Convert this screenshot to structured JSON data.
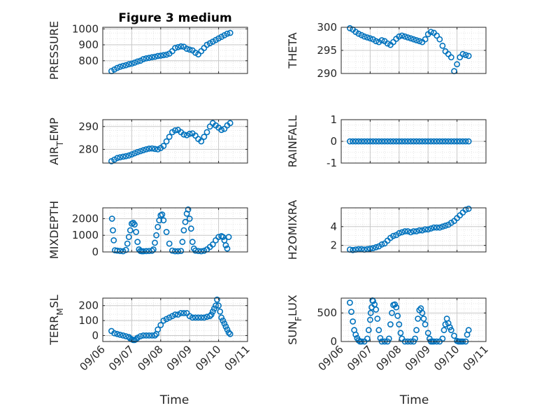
{
  "colors": {
    "marker": "#0072BD",
    "axis": "#262626",
    "grid": "#c8c8c8",
    "minor_grid": "#e6e6e6"
  },
  "chart_data": [
    {
      "id": "pressure",
      "type": "scatter",
      "title": "Figure 3 medium",
      "ylabel": "PRESSURE",
      "xlim": [
        6,
        11
      ],
      "ylim": [
        720,
        1010
      ],
      "yticks": [
        800,
        900,
        1000
      ],
      "ytick_labels": [
        "800",
        "900",
        "1000"
      ],
      "grid": true,
      "legend": "none",
      "x": [
        6.3,
        6.4,
        6.5,
        6.6,
        6.7,
        6.8,
        6.9,
        7.0,
        7.1,
        7.2,
        7.3,
        7.4,
        7.5,
        7.6,
        7.7,
        7.8,
        7.9,
        8.0,
        8.1,
        8.2,
        8.3,
        8.4,
        8.5,
        8.6,
        8.7,
        8.8,
        8.9,
        9.0,
        9.1,
        9.2,
        9.3,
        9.4,
        9.5,
        9.6,
        9.7,
        9.8,
        9.9,
        10.0,
        10.1,
        10.2,
        10.3,
        10.4
      ],
      "y": [
        735,
        745,
        755,
        762,
        768,
        772,
        778,
        782,
        788,
        795,
        800,
        810,
        815,
        818,
        822,
        825,
        830,
        832,
        835,
        838,
        845,
        860,
        880,
        885,
        890,
        888,
        875,
        870,
        865,
        850,
        840,
        860,
        880,
        900,
        910,
        920,
        930,
        940,
        950,
        960,
        970,
        975
      ]
    },
    {
      "id": "theta",
      "type": "scatter",
      "title": "",
      "ylabel": "THETA",
      "xlim": [
        6,
        11
      ],
      "ylim": [
        290,
        300
      ],
      "yticks": [
        290,
        295,
        300
      ],
      "ytick_labels": [
        "290",
        "295",
        "300"
      ],
      "grid": true,
      "legend": "none",
      "x": [
        6.3,
        6.4,
        6.5,
        6.6,
        6.7,
        6.8,
        6.9,
        7.0,
        7.1,
        7.2,
        7.3,
        7.4,
        7.5,
        7.6,
        7.7,
        7.8,
        7.9,
        8.0,
        8.1,
        8.2,
        8.3,
        8.4,
        8.5,
        8.6,
        8.7,
        8.8,
        8.9,
        9.0,
        9.1,
        9.2,
        9.3,
        9.4,
        9.5,
        9.6,
        9.7,
        9.8,
        9.9,
        10.0,
        10.1,
        10.2,
        10.3,
        10.4
      ],
      "y": [
        299.8,
        299.5,
        299.0,
        298.6,
        298.3,
        298.0,
        297.8,
        297.6,
        297.4,
        297.0,
        296.8,
        297.2,
        297.0,
        296.5,
        296.2,
        296.8,
        297.5,
        298.0,
        298.2,
        298.0,
        297.8,
        297.6,
        297.4,
        297.2,
        297.0,
        296.8,
        297.4,
        298.5,
        299.0,
        298.8,
        298.2,
        297.4,
        296.0,
        294.8,
        294.2,
        293.5,
        290.5,
        292.0,
        293.5,
        294.2,
        294.0,
        293.8
      ]
    },
    {
      "id": "air_temp",
      "type": "scatter",
      "title": "",
      "ylabel": "AIR_TEMP",
      "xlim": [
        6,
        11
      ],
      "ylim": [
        274,
        293
      ],
      "yticks": [
        280,
        290
      ],
      "ytick_labels": [
        "280",
        "290"
      ],
      "grid": true,
      "legend": "none",
      "x": [
        6.3,
        6.4,
        6.5,
        6.6,
        6.7,
        6.8,
        6.9,
        7.0,
        7.1,
        7.2,
        7.3,
        7.4,
        7.5,
        7.6,
        7.7,
        7.8,
        7.9,
        8.0,
        8.1,
        8.2,
        8.3,
        8.4,
        8.5,
        8.6,
        8.7,
        8.8,
        8.9,
        9.0,
        9.1,
        9.2,
        9.3,
        9.4,
        9.5,
        9.6,
        9.7,
        9.8,
        9.9,
        10.0,
        10.1,
        10.2,
        10.3,
        10.4
      ],
      "y": [
        274.8,
        275.5,
        276.2,
        276.5,
        276.8,
        277.0,
        277.3,
        277.8,
        278.3,
        278.8,
        279.2,
        279.6,
        280.0,
        280.3,
        280.4,
        280.2,
        280.0,
        280.6,
        281.5,
        283.5,
        285.5,
        287.5,
        288.3,
        288.5,
        287.5,
        286.5,
        286.2,
        286.8,
        287.0,
        286.0,
        284.5,
        283.5,
        285.5,
        287.5,
        290.0,
        291.5,
        290.5,
        289.5,
        288.5,
        289.0,
        290.5,
        291.5
      ]
    },
    {
      "id": "rainfall",
      "type": "scatter",
      "title": "",
      "ylabel": "RAINFALL",
      "xlim": [
        6,
        11
      ],
      "ylim": [
        -1,
        1
      ],
      "yticks": [
        -1,
        0,
        1
      ],
      "ytick_labels": [
        "-1",
        "0",
        "1"
      ],
      "grid": true,
      "legend": "none",
      "x": [
        6.3,
        6.4,
        6.5,
        6.6,
        6.7,
        6.8,
        6.9,
        7.0,
        7.1,
        7.2,
        7.3,
        7.4,
        7.5,
        7.6,
        7.7,
        7.8,
        7.9,
        8.0,
        8.1,
        8.2,
        8.3,
        8.4,
        8.5,
        8.6,
        8.7,
        8.8,
        8.9,
        9.0,
        9.1,
        9.2,
        9.3,
        9.4,
        9.5,
        9.6,
        9.7,
        9.8,
        9.9,
        10.0,
        10.1,
        10.2,
        10.3,
        10.4
      ],
      "y": [
        0,
        0,
        0,
        0,
        0,
        0,
        0,
        0,
        0,
        0,
        0,
        0,
        0,
        0,
        0,
        0,
        0,
        0,
        0,
        0,
        0,
        0,
        0,
        0,
        0,
        0,
        0,
        0,
        0,
        0,
        0,
        0,
        0,
        0,
        0,
        0,
        0,
        0,
        0,
        0,
        0,
        0
      ]
    },
    {
      "id": "mixdepth",
      "type": "scatter",
      "title": "",
      "ylabel": "MIXDEPTH",
      "xlim": [
        6,
        11
      ],
      "ylim": [
        0,
        2650
      ],
      "yticks": [
        0,
        1000,
        2000
      ],
      "ytick_labels": [
        "0",
        "1000",
        "2000"
      ],
      "grid": true,
      "legend": "none",
      "x": [
        6.32,
        6.35,
        6.38,
        6.42,
        6.5,
        6.6,
        6.7,
        6.8,
        6.85,
        6.9,
        6.95,
        7.0,
        7.05,
        7.1,
        7.15,
        7.2,
        7.25,
        7.3,
        7.35,
        7.4,
        7.5,
        7.6,
        7.7,
        7.75,
        7.8,
        7.85,
        7.9,
        7.95,
        8.0,
        8.05,
        8.1,
        8.2,
        8.3,
        8.4,
        8.5,
        8.6,
        8.7,
        8.75,
        8.8,
        8.85,
        8.9,
        8.95,
        9.0,
        9.05,
        9.1,
        9.15,
        9.2,
        9.3,
        9.4,
        9.5,
        9.6,
        9.7,
        9.8,
        9.9,
        10.0,
        10.1,
        10.15,
        10.2,
        10.25,
        10.3,
        10.35
      ],
      "y": [
        2000,
        1300,
        700,
        100,
        80,
        60,
        40,
        120,
        500,
        900,
        1300,
        1700,
        1750,
        1650,
        1200,
        600,
        150,
        60,
        40,
        40,
        50,
        60,
        70,
        150,
        550,
        1000,
        1500,
        1900,
        2200,
        2250,
        1900,
        1200,
        500,
        80,
        40,
        40,
        60,
        600,
        1300,
        1800,
        2300,
        2550,
        2000,
        1400,
        600,
        200,
        80,
        60,
        40,
        70,
        150,
        300,
        450,
        700,
        900,
        950,
        900,
        700,
        400,
        200,
        900
      ]
    },
    {
      "id": "h2omixra",
      "type": "scatter",
      "title": "",
      "ylabel": "H2OMIXRA",
      "xlim": [
        6,
        11
      ],
      "ylim": [
        1.3,
        6.0
      ],
      "yticks": [
        2,
        4
      ],
      "ytick_labels": [
        "2",
        "4"
      ],
      "grid": true,
      "legend": "none",
      "x": [
        6.3,
        6.4,
        6.5,
        6.6,
        6.7,
        6.8,
        6.9,
        7.0,
        7.1,
        7.2,
        7.3,
        7.4,
        7.5,
        7.6,
        7.7,
        7.8,
        7.9,
        8.0,
        8.1,
        8.2,
        8.3,
        8.4,
        8.5,
        8.6,
        8.7,
        8.8,
        8.9,
        9.0,
        9.1,
        9.2,
        9.3,
        9.4,
        9.5,
        9.6,
        9.7,
        9.8,
        9.9,
        10.0,
        10.1,
        10.2,
        10.3,
        10.4
      ],
      "y": [
        1.55,
        1.5,
        1.55,
        1.6,
        1.6,
        1.55,
        1.6,
        1.65,
        1.7,
        1.8,
        1.9,
        2.1,
        2.2,
        2.5,
        2.8,
        3.0,
        3.1,
        3.3,
        3.4,
        3.5,
        3.5,
        3.4,
        3.5,
        3.5,
        3.6,
        3.6,
        3.7,
        3.7,
        3.8,
        3.9,
        3.9,
        3.9,
        4.0,
        4.1,
        4.2,
        4.4,
        4.6,
        4.9,
        5.2,
        5.5,
        5.8,
        5.9
      ]
    },
    {
      "id": "terr_msl",
      "type": "scatter",
      "title": "",
      "ylabel": "TERR_MSL",
      "xlim": [
        6,
        11
      ],
      "ylim": [
        -40,
        250
      ],
      "yticks": [
        0,
        100,
        200
      ],
      "ytick_labels": [
        "0",
        "100",
        "200"
      ],
      "grid": true,
      "legend": "none",
      "x": [
        6.3,
        6.4,
        6.5,
        6.6,
        6.7,
        6.8,
        6.9,
        6.95,
        7.0,
        7.05,
        7.1,
        7.15,
        7.2,
        7.3,
        7.4,
        7.5,
        7.6,
        7.7,
        7.8,
        7.85,
        7.9,
        8.0,
        8.1,
        8.2,
        8.3,
        8.4,
        8.5,
        8.6,
        8.7,
        8.8,
        8.9,
        9.0,
        9.1,
        9.2,
        9.3,
        9.4,
        9.5,
        9.6,
        9.7,
        9.75,
        9.8,
        9.85,
        9.9,
        9.95,
        10.0,
        10.05,
        10.1,
        10.15,
        10.2,
        10.25,
        10.3,
        10.35,
        10.4
      ],
      "y": [
        30,
        15,
        10,
        5,
        0,
        -5,
        -10,
        -20,
        -25,
        -30,
        -30,
        -25,
        -15,
        -5,
        0,
        0,
        0,
        0,
        0,
        10,
        40,
        70,
        100,
        110,
        120,
        130,
        140,
        140,
        150,
        150,
        150,
        130,
        120,
        120,
        120,
        120,
        120,
        125,
        130,
        140,
        160,
        180,
        200,
        240,
        200,
        160,
        120,
        100,
        80,
        60,
        40,
        20,
        10
      ]
    },
    {
      "id": "sun_flux",
      "type": "scatter",
      "title": "",
      "ylabel": "SUN_FLUX",
      "xlim": [
        6,
        11
      ],
      "ylim": [
        0,
        760
      ],
      "yticks": [
        0,
        500
      ],
      "ytick_labels": [
        "0",
        "500"
      ],
      "grid": true,
      "legend": "none",
      "x": [
        6.3,
        6.35,
        6.4,
        6.45,
        6.5,
        6.55,
        6.6,
        6.65,
        6.7,
        6.8,
        6.9,
        6.95,
        7.0,
        7.02,
        7.05,
        7.08,
        7.1,
        7.15,
        7.2,
        7.25,
        7.3,
        7.35,
        7.4,
        7.5,
        7.6,
        7.65,
        7.7,
        7.75,
        7.8,
        7.85,
        7.9,
        7.95,
        8.0,
        8.05,
        8.1,
        8.2,
        8.3,
        8.4,
        8.5,
        8.55,
        8.6,
        8.65,
        8.7,
        8.75,
        8.8,
        8.85,
        8.9,
        9.0,
        9.05,
        9.1,
        9.15,
        9.2,
        9.3,
        9.4,
        9.5,
        9.55,
        9.6,
        9.65,
        9.7,
        9.75,
        9.8,
        9.9,
        10.0,
        10.05,
        10.1,
        10.15,
        10.2,
        10.3,
        10.35,
        10.4
      ],
      "y": [
        680,
        520,
        350,
        200,
        120,
        60,
        20,
        0,
        0,
        0,
        50,
        200,
        380,
        500,
        600,
        720,
        710,
        650,
        560,
        400,
        200,
        60,
        0,
        0,
        0,
        50,
        300,
        500,
        640,
        650,
        600,
        450,
        300,
        150,
        50,
        0,
        0,
        0,
        0,
        50,
        200,
        400,
        550,
        580,
        500,
        400,
        300,
        150,
        50,
        0,
        0,
        0,
        0,
        0,
        50,
        200,
        300,
        400,
        320,
        250,
        200,
        100,
        10,
        0,
        0,
        0,
        0,
        0,
        120,
        200
      ]
    }
  ],
  "xaxis": {
    "tick_values": [
      6,
      7,
      8,
      9,
      10,
      11
    ],
    "tick_labels": [
      "09/06",
      "09/07",
      "09/08",
      "09/09",
      "09/10",
      "09/11"
    ],
    "label": "Time"
  }
}
